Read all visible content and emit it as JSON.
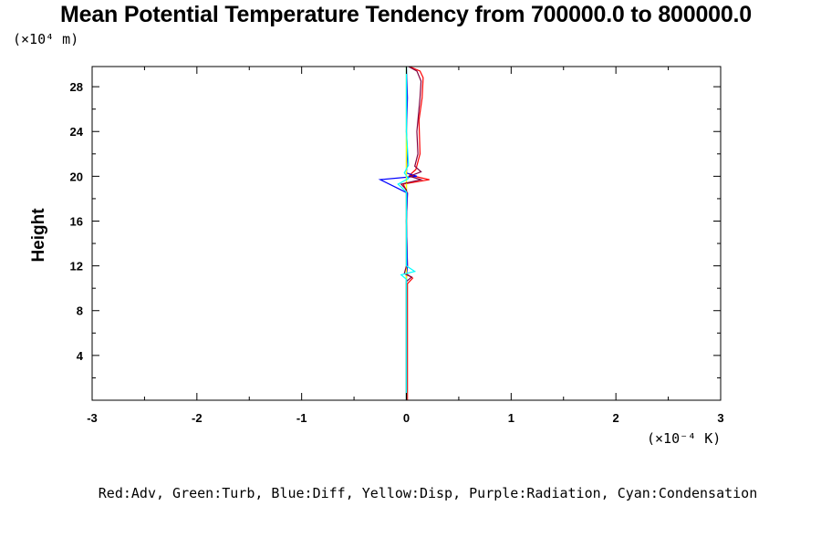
{
  "chart_data": {
    "type": "line",
    "title": "Mean Potential Temperature Tendency from 700000.0 to 800000.0",
    "ylabel": "Height",
    "y_unit": "(×10⁴ m)",
    "x_unit": "(×10⁻⁴ K)",
    "xlim": [
      -3,
      3
    ],
    "ylim": [
      0,
      29.8
    ],
    "x_ticks": [
      "-3",
      "-2",
      "-1",
      "0",
      "1",
      "2",
      "3"
    ],
    "y_ticks": [
      "4",
      "8",
      "12",
      "16",
      "20",
      "24",
      "28"
    ],
    "legend_text": "Red:Adv, Green:Turb, Blue:Diff, Yellow:Disp, Purple:Radiation, Cyan:Condensation",
    "series": [
      {
        "name": "Adv",
        "color": "#ff0000",
        "points": [
          [
            0.01,
            0
          ],
          [
            0.01,
            10.4
          ],
          [
            0.06,
            10.9
          ],
          [
            0.0,
            11.3
          ],
          [
            0.01,
            12
          ],
          [
            0.0,
            16
          ],
          [
            0.01,
            18.5
          ],
          [
            -0.03,
            19.3
          ],
          [
            0.22,
            19.7
          ],
          [
            0.03,
            20.1
          ],
          [
            0.09,
            20.6
          ],
          [
            0.13,
            22
          ],
          [
            0.12,
            25
          ],
          [
            0.15,
            27
          ],
          [
            0.16,
            28.8
          ],
          [
            0.13,
            29.4
          ],
          [
            0.03,
            29.8
          ]
        ]
      },
      {
        "name": "Turb",
        "color": "#00cc00",
        "points": [
          [
            0.0,
            0
          ],
          [
            0.0,
            0.3
          ],
          [
            0.0,
            29.8
          ]
        ]
      },
      {
        "name": "Diff",
        "color": "#0000ff",
        "points": [
          [
            0.0,
            0
          ],
          [
            0.0,
            11
          ],
          [
            0.01,
            12
          ],
          [
            0.0,
            16
          ],
          [
            0.01,
            18.5
          ],
          [
            -0.25,
            19.7
          ],
          [
            0.1,
            20.0
          ],
          [
            0.0,
            20.3
          ],
          [
            0.01,
            22
          ],
          [
            0.0,
            24
          ],
          [
            0.01,
            27
          ],
          [
            0.0,
            29.8
          ]
        ]
      },
      {
        "name": "Disp",
        "color": "#ffff00",
        "points": [
          [
            0.0,
            0
          ],
          [
            0.0,
            29.8
          ]
        ]
      },
      {
        "name": "Radiation",
        "color": "#800040",
        "points": [
          [
            0.0,
            0
          ],
          [
            0.0,
            10.6
          ],
          [
            0.05,
            11.0
          ],
          [
            -0.02,
            11.3
          ],
          [
            0.0,
            12
          ],
          [
            0.0,
            18.8
          ],
          [
            -0.05,
            19.3
          ],
          [
            0.14,
            19.7
          ],
          [
            0.03,
            20.0
          ],
          [
            0.14,
            20.4
          ],
          [
            0.08,
            20.9
          ],
          [
            0.11,
            22
          ],
          [
            0.1,
            24
          ],
          [
            0.13,
            27
          ],
          [
            0.14,
            28.5
          ],
          [
            0.1,
            29.4
          ],
          [
            0.02,
            29.8
          ]
        ]
      },
      {
        "name": "Condensation",
        "color": "#00ffff",
        "points": [
          [
            0.0,
            0
          ],
          [
            0.0,
            10.8
          ],
          [
            -0.05,
            11.2
          ],
          [
            0.08,
            11.5
          ],
          [
            0.0,
            12
          ],
          [
            0.0,
            18.6
          ],
          [
            -0.08,
            19.3
          ],
          [
            0.02,
            19.8
          ],
          [
            -0.02,
            20.3
          ],
          [
            0.02,
            21
          ],
          [
            0.0,
            24
          ],
          [
            0.0,
            29.8
          ]
        ]
      }
    ]
  }
}
